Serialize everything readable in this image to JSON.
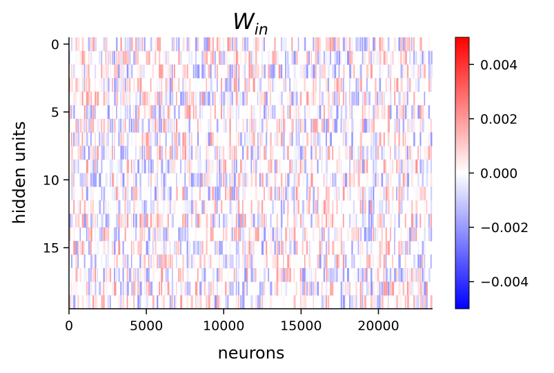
{
  "chart_data": {
    "type": "heatmap",
    "title_main": "W",
    "title_sub": "in",
    "xlabel": "neurons",
    "ylabel": "hidden units",
    "xlim": [
      0,
      23500
    ],
    "ylim": [
      -0.5,
      19.5
    ],
    "y_inverted": true,
    "rows": 20,
    "x_ticks": [
      {
        "value": 0,
        "label": "0"
      },
      {
        "value": 5000,
        "label": "5000"
      },
      {
        "value": 10000,
        "label": "10000"
      },
      {
        "value": 15000,
        "label": "15000"
      },
      {
        "value": 20000,
        "label": "20000"
      }
    ],
    "y_ticks": [
      {
        "value": 0,
        "label": "0"
      },
      {
        "value": 5,
        "label": "5"
      },
      {
        "value": 10,
        "label": "10"
      },
      {
        "value": 15,
        "label": "15"
      }
    ],
    "colorbar": {
      "cmap": "bwr",
      "vmin": -0.005,
      "vmax": 0.005,
      "ticks": [
        {
          "value": 0.004,
          "label": "0.004"
        },
        {
          "value": 0.002,
          "label": "0.002"
        },
        {
          "value": 0.0,
          "label": "0.000"
        },
        {
          "value": -0.002,
          "label": "−0.002"
        },
        {
          "value": -0.004,
          "label": "−0.004"
        }
      ]
    },
    "colors": {
      "low": "#0000ff",
      "mid": "#ffffff",
      "high": "#ff0000"
    },
    "grid": false,
    "legend": "none"
  }
}
